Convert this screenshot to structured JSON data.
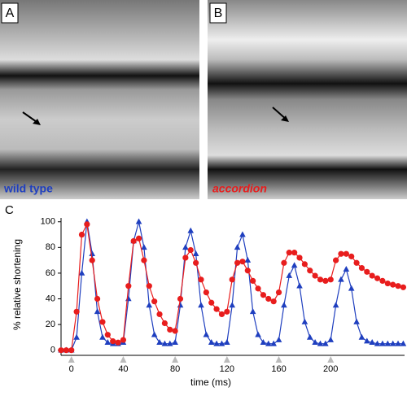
{
  "panels": [
    {
      "label": "A",
      "caption": "wild type"
    },
    {
      "label": "B",
      "caption": "accordion"
    }
  ],
  "chart_label": "C",
  "chart_data": {
    "type": "line",
    "xlabel": "time (ms)",
    "ylabel": "% relative shortening",
    "xlim": [
      -8,
      257
    ],
    "ylim": [
      -4,
      103
    ],
    "xticks": [
      0,
      40,
      80,
      120,
      160,
      200
    ],
    "yticks": [
      0,
      20,
      40,
      60,
      80,
      100
    ],
    "x": [
      -8,
      -4,
      0,
      4,
      8,
      12,
      16,
      20,
      24,
      28,
      32,
      36,
      40,
      44,
      48,
      52,
      56,
      60,
      64,
      68,
      72,
      76,
      80,
      84,
      88,
      92,
      96,
      100,
      104,
      108,
      112,
      116,
      120,
      124,
      128,
      132,
      136,
      140,
      144,
      148,
      152,
      156,
      160,
      164,
      168,
      172,
      176,
      180,
      184,
      188,
      192,
      196,
      200,
      204,
      208,
      212,
      216,
      220,
      224,
      228,
      232,
      236,
      240,
      244,
      248,
      252,
      256
    ],
    "series": [
      {
        "color": "#1f3fbf",
        "marker": "triangle",
        "values": [
          0,
          0,
          0,
          10,
          60,
          100,
          75,
          30,
          10,
          6,
          5,
          5,
          6,
          40,
          85,
          100,
          80,
          35,
          12,
          6,
          5,
          5,
          6,
          35,
          80,
          93,
          75,
          35,
          12,
          6,
          5,
          5,
          6,
          35,
          80,
          90,
          70,
          30,
          12,
          6,
          5,
          5,
          8,
          35,
          58,
          66,
          50,
          22,
          10,
          6,
          5,
          5,
          8,
          35,
          55,
          63,
          48,
          22,
          10,
          7,
          6,
          5,
          5,
          5,
          5,
          5,
          5
        ]
      },
      {
        "color": "#e81d1d",
        "marker": "circle",
        "values": [
          0,
          0,
          0,
          30,
          90,
          98,
          70,
          40,
          22,
          12,
          7,
          6,
          8,
          50,
          85,
          87,
          70,
          50,
          38,
          28,
          21,
          16,
          15,
          40,
          72,
          78,
          68,
          55,
          45,
          37,
          32,
          28,
          30,
          55,
          68,
          69,
          62,
          54,
          48,
          43,
          40,
          38,
          45,
          68,
          76,
          76,
          72,
          67,
          62,
          58,
          55,
          54,
          55,
          70,
          75,
          75,
          73,
          68,
          64,
          61,
          58,
          56,
          54,
          52,
          51,
          50,
          49
        ]
      }
    ]
  }
}
